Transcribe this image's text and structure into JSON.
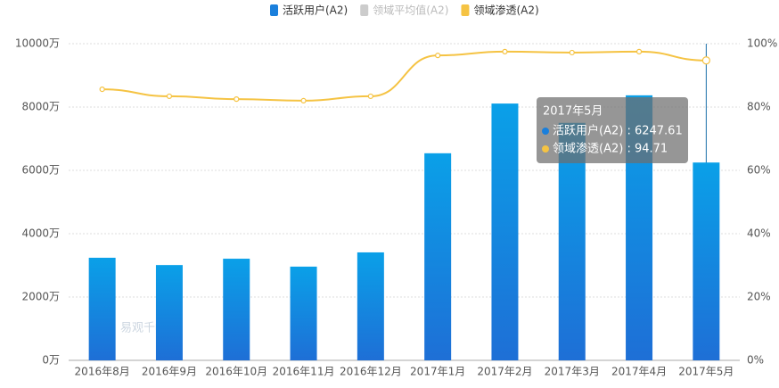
{
  "chart_data": {
    "type": "bar_line",
    "categories": [
      "2016年8月",
      "2016年9月",
      "2016年10月",
      "2016年11月",
      "2016年12月",
      "2017年1月",
      "2017年2月",
      "2017年3月",
      "2017年4月",
      "2017年5月"
    ],
    "series": [
      {
        "name": "活跃用户(A2)",
        "type": "bar",
        "color": "#1a7fdc",
        "visible": true,
        "values": [
          3240,
          3010,
          3210,
          2960,
          3410,
          6540,
          8110,
          7500,
          8370,
          6247.61
        ]
      },
      {
        "name": "领域平均值(A2)",
        "type": "line",
        "color": "#c8c8c8",
        "visible": false,
        "values": [
          null,
          null,
          null,
          null,
          null,
          null,
          null,
          null,
          null,
          null
        ]
      },
      {
        "name": "领域渗透(A2)",
        "type": "line",
        "axis": "y2",
        "color": "#f5c343",
        "visible": true,
        "values": [
          85.6,
          83.4,
          82.5,
          82.0,
          83.4,
          96.3,
          97.5,
          97.2,
          97.5,
          94.71
        ]
      }
    ],
    "ylim": [
      0,
      10000
    ],
    "yticks": [
      {
        "value": 0,
        "label": "0万"
      },
      {
        "value": 2000,
        "label": "2000万"
      },
      {
        "value": 4000,
        "label": "4000万"
      },
      {
        "value": 6000,
        "label": "6000万"
      },
      {
        "value": 8000,
        "label": "8000万"
      },
      {
        "value": 10000,
        "label": "10000万"
      }
    ],
    "y2lim": [
      0,
      100
    ],
    "y2ticks": [
      {
        "value": 0,
        "label": "0%"
      },
      {
        "value": 20,
        "label": "20%"
      },
      {
        "value": 40,
        "label": "40%"
      },
      {
        "value": 60,
        "label": "60%"
      },
      {
        "value": 80,
        "label": "80%"
      },
      {
        "value": 100,
        "label": "100%"
      }
    ],
    "grid": true,
    "legend": "top",
    "highlight_index": 9,
    "tooltip": {
      "title": "2017年5月",
      "lines": [
        "活跃用户(A2) : 6247.61",
        "领域渗透(A2) : 94.71"
      ]
    },
    "watermark": "易观千帆"
  }
}
